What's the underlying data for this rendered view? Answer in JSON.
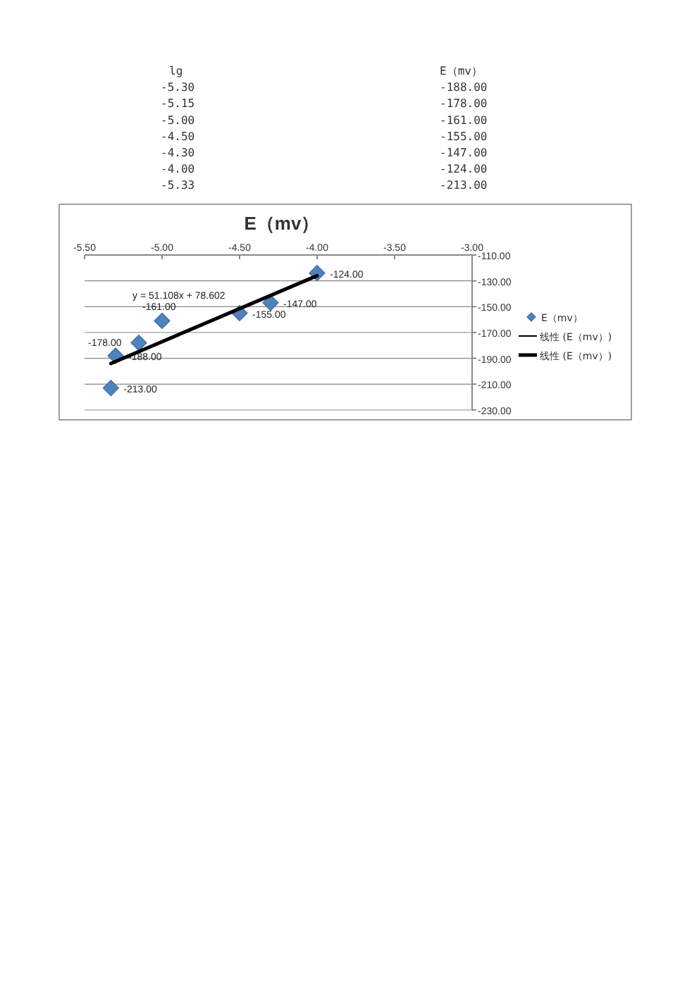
{
  "chart_data": {
    "type": "scatter",
    "title": "E（mv）",
    "xlim": [
      -5.5,
      -3.0
    ],
    "xticks": [
      {
        "value": -5.5,
        "label": "-5.50"
      },
      {
        "value": -5.0,
        "label": "-5.00"
      },
      {
        "value": -4.5,
        "label": "-4.50"
      },
      {
        "value": -4.0,
        "label": "-4.00"
      },
      {
        "value": -3.5,
        "label": "-3.50"
      },
      {
        "value": -3.0,
        "label": "-3.00"
      }
    ],
    "ylim": [
      -230,
      -110
    ],
    "yticks": [
      {
        "value": -110,
        "label": "-110.00"
      },
      {
        "value": -130,
        "label": "-130.00"
      },
      {
        "value": -150,
        "label": "-150.00"
      },
      {
        "value": -170,
        "label": "-170.00"
      },
      {
        "value": -190,
        "label": "-190.00"
      },
      {
        "value": -210,
        "label": "-210.00"
      },
      {
        "value": -230,
        "label": "-230.00"
      }
    ],
    "grid": "y",
    "legend": "right",
    "series": [
      {
        "name": "E（mv）",
        "color": "#4f81bd",
        "marker": "diamond",
        "x": [
          -5.3,
          -5.15,
          -5.0,
          -4.5,
          -4.3,
          -4.0,
          -5.33
        ],
        "values": [
          -188,
          -178,
          -161,
          -155,
          -147,
          -124,
          -213
        ],
        "value_labels": [
          "-188.00",
          "-178.00",
          "-161.00",
          "-155.00",
          "-147.00",
          "-124.00",
          "-213.00"
        ]
      },
      {
        "name": "线性 (E（mv）)",
        "type": "line",
        "color": "#000000"
      },
      {
        "name": "线性 (E（mv）)",
        "type": "line",
        "color": "#000000",
        "x": [
          -5.33,
          -4.0
        ],
        "values": [
          -194,
          -126
        ]
      }
    ],
    "annotations": [
      "y = 51.108x + 78.602",
      "lg",
      "E（mv）",
      "-5.30",
      "-188.00",
      "-5.15",
      "-178.00",
      "-5.00",
      "-161.00",
      "-4.50",
      "-155.00",
      "-4.30",
      "-147.00",
      "-4.00",
      "-124.00",
      "-5.33",
      "-213.00"
    ]
  }
}
